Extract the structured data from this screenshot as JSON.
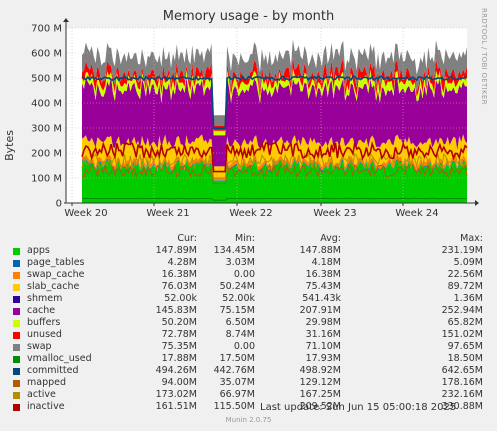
{
  "title": "Memory usage - by month",
  "side_label": "RRDTOOL / TOBI OETIKER",
  "footer": "Munin 2.0.75",
  "last_update": "Last update: Sun Jun 15 05:00:18 2025",
  "legend_headers": [
    "Cur:",
    "Min:",
    "Avg:",
    "Max:"
  ],
  "legend": [
    {
      "name": "apps",
      "color": "#00cc00",
      "cur": "147.89M",
      "min": "134.45M",
      "avg": "147.88M",
      "max": "231.19M"
    },
    {
      "name": "page_tables",
      "color": "#0066b3",
      "cur": "4.28M",
      "min": "3.03M",
      "avg": "4.18M",
      "max": "5.09M"
    },
    {
      "name": "swap_cache",
      "color": "#ff8000",
      "cur": "16.38M",
      "min": "0.00",
      "avg": "16.38M",
      "max": "22.56M"
    },
    {
      "name": "slab_cache",
      "color": "#ffcc00",
      "cur": "76.03M",
      "min": "50.24M",
      "avg": "75.43M",
      "max": "89.72M"
    },
    {
      "name": "shmem",
      "color": "#330099",
      "cur": "52.00k",
      "min": "52.00k",
      "avg": "541.43k",
      "max": "1.36M"
    },
    {
      "name": "cache",
      "color": "#990099",
      "cur": "145.83M",
      "min": "75.15M",
      "avg": "207.91M",
      "max": "252.94M"
    },
    {
      "name": "buffers",
      "color": "#ccff00",
      "cur": "50.20M",
      "min": "6.50M",
      "avg": "29.98M",
      "max": "65.82M"
    },
    {
      "name": "unused",
      "color": "#ff0000",
      "cur": "72.78M",
      "min": "8.74M",
      "avg": "31.16M",
      "max": "151.02M"
    },
    {
      "name": "swap",
      "color": "#808080",
      "cur": "75.35M",
      "min": "0.00",
      "avg": "71.10M",
      "max": "97.65M"
    },
    {
      "name": "vmalloc_used",
      "color": "#008f00",
      "cur": "17.88M",
      "min": "17.50M",
      "avg": "17.93M",
      "max": "18.50M"
    },
    {
      "name": "committed",
      "color": "#00487d",
      "cur": "494.26M",
      "min": "442.76M",
      "avg": "498.92M",
      "max": "642.65M"
    },
    {
      "name": "mapped",
      "color": "#b35a00",
      "cur": "94.00M",
      "min": "35.07M",
      "avg": "129.12M",
      "max": "178.16M"
    },
    {
      "name": "active",
      "color": "#b38f00",
      "cur": "173.02M",
      "min": "66.97M",
      "avg": "167.25M",
      "max": "232.16M"
    },
    {
      "name": "inactive",
      "color": "#b30000",
      "cur": "161.51M",
      "min": "115.50M",
      "avg": "209.52M",
      "max": "330.88M"
    }
  ],
  "chart_data": {
    "type": "area",
    "title": "Memory usage - by month",
    "ylabel": "Bytes",
    "ylim": [
      0,
      700
    ],
    "yticks": [
      "0",
      "100 M",
      "200 M",
      "300 M",
      "400 M",
      "500 M",
      "600 M",
      "700 M"
    ],
    "xticks": [
      "Week 20",
      "Week 21",
      "Week 22",
      "Week 23",
      "Week 24"
    ],
    "grid": true,
    "stack_order": [
      "apps",
      "page_tables",
      "swap_cache",
      "slab_cache",
      "shmem",
      "cache",
      "buffers",
      "unused",
      "swap"
    ],
    "line_series": [
      "vmalloc_used",
      "committed",
      "mapped",
      "active",
      "inactive"
    ],
    "series_average_M": {
      "apps": 147.88,
      "page_tables": 4.18,
      "swap_cache": 16.38,
      "slab_cache": 75.43,
      "shmem": 0.54,
      "cache": 207.91,
      "buffers": 29.98,
      "unused": 31.16,
      "swap": 71.1,
      "vmalloc_used": 17.93,
      "committed": 498.92,
      "mapped": 129.12,
      "active": 167.25,
      "inactive": 209.52
    }
  }
}
